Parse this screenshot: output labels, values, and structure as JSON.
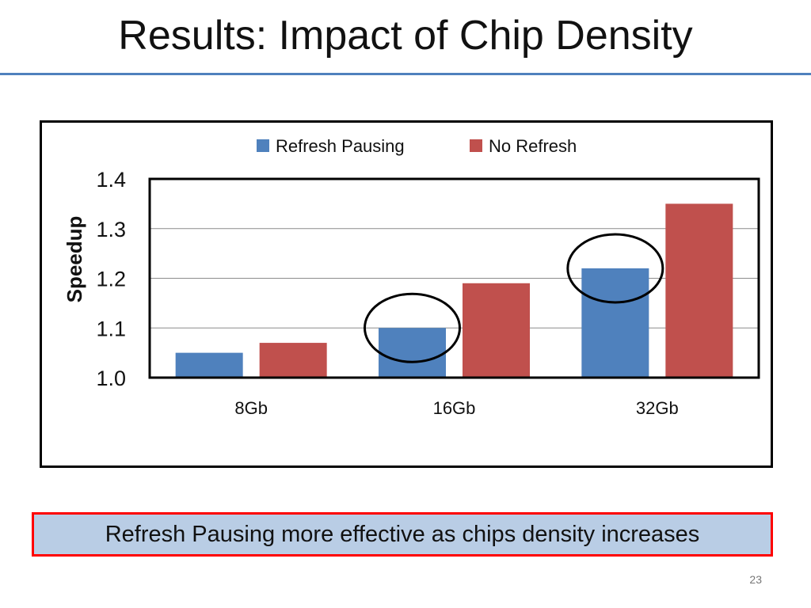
{
  "slide": {
    "title": "Results: Impact of Chip Density",
    "callout": "Refresh Pausing more effective as chips density increases",
    "page_number": "23"
  },
  "colors": {
    "series1": "#4f81bd",
    "series2": "#c0504d",
    "accent": "#4f81bd",
    "callout_bg": "#b9cde5",
    "callout_border": "#ff0000"
  },
  "chart_data": {
    "type": "bar",
    "title": "",
    "xlabel": "",
    "ylabel": "Speedup",
    "categories": [
      "8Gb",
      "16Gb",
      "32Gb"
    ],
    "series": [
      {
        "name": "Refresh Pausing",
        "values": [
          1.05,
          1.1,
          1.22
        ]
      },
      {
        "name": "No Refresh",
        "values": [
          1.07,
          1.19,
          1.35
        ]
      }
    ],
    "ylim": [
      1.0,
      1.4
    ],
    "yticks": [
      "1.0",
      "1.1",
      "1.2",
      "1.3",
      "1.4"
    ],
    "grid": true,
    "legend": "top",
    "highlights": [
      {
        "series": "Refresh Pausing",
        "category": "16Gb"
      },
      {
        "series": "Refresh Pausing",
        "category": "32Gb"
      }
    ]
  }
}
